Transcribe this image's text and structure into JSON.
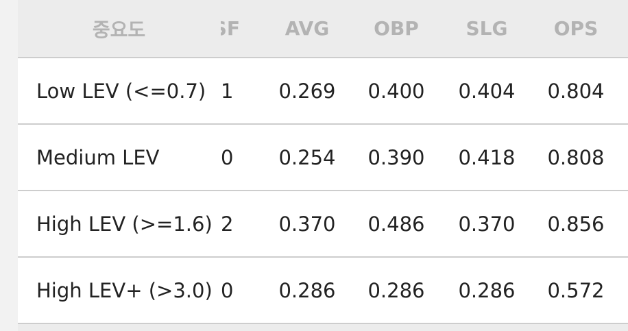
{
  "table": {
    "header": [
      "중요도",
      "SF",
      "AVG",
      "OBP",
      "SLG",
      "OPS"
    ],
    "rows": [
      [
        "Low LEV (<=0.7)",
        "1",
        "0.269",
        "0.400",
        "0.404",
        "0.804"
      ],
      [
        "Medium LEV",
        "0",
        "0.254",
        "0.390",
        "0.418",
        "0.808"
      ],
      [
        "High LEV (>=1.6)",
        "2",
        "0.370",
        "0.486",
        "0.370",
        "0.856"
      ],
      [
        "High LEV+ (>3.0)",
        "0",
        "0.286",
        "0.286",
        "0.286",
        "0.572"
      ]
    ]
  }
}
